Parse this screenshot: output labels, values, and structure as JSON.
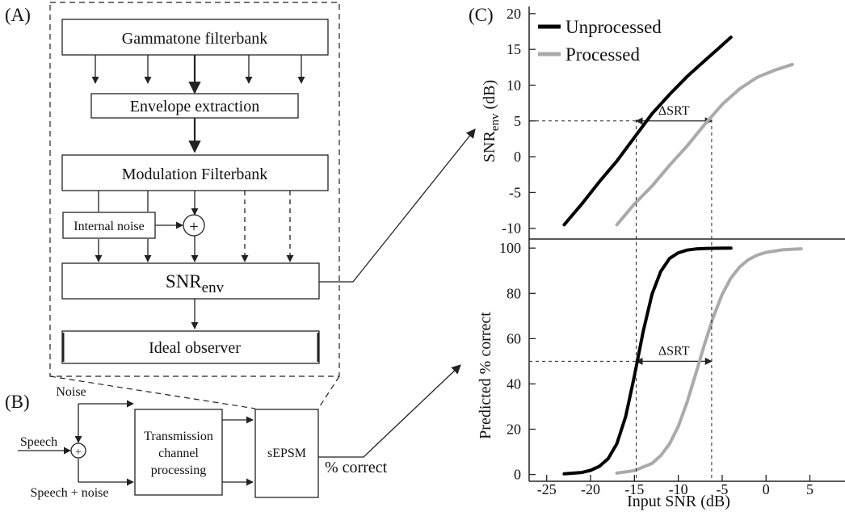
{
  "panel_labels": {
    "a": "(A)",
    "b": "(B)",
    "c": "(C)"
  },
  "panel_a": {
    "gammatone": "Gammatone filterbank",
    "envelope": "Envelope extraction",
    "modulation": "Modulation Filterbank",
    "internal_noise": "Internal noise",
    "plus": "+",
    "snr_base": "SNR",
    "snr_sub": "env",
    "ideal_observer": "Ideal observer"
  },
  "panel_b": {
    "noise": "Noise",
    "speech": "Speech",
    "plus": "+",
    "speech_noise": "Speech + noise",
    "transmission_line1": "Transmission",
    "transmission_line2": "channel",
    "transmission_line3": "processing",
    "sepsm": "sEPSM",
    "percent_correct": "% correct"
  },
  "panel_c": {
    "legend": [
      {
        "name": "Unprocessed",
        "color": "#000000"
      },
      {
        "name": "Processed",
        "color": "#aaaaaa"
      }
    ],
    "delta_srt": "ΔSRT",
    "top_ylabel_base": "SNR",
    "top_ylabel_sub": "env",
    "top_ylabel_unit": " (dB)",
    "bottom_ylabel": "Predicted % correct",
    "xlabel": "Input SNR (dB)"
  },
  "chart_data": [
    {
      "type": "line",
      "panel": "C-top",
      "ylabel": "SNRenv (dB)",
      "xlim": [
        -27,
        9
      ],
      "ylim": [
        -11.5,
        21
      ],
      "yticks": [
        20,
        15,
        10,
        5,
        0,
        -5,
        -10
      ],
      "series": [
        {
          "name": "Unprocessed",
          "color": "#000000",
          "x": [
            -23,
            -21,
            -19,
            -17,
            -15,
            -13,
            -11,
            -9,
            -7,
            -5,
            -4
          ],
          "y": [
            -9.5,
            -6.6,
            -3.5,
            -0.6,
            2.7,
            6.0,
            8.7,
            11.2,
            13.4,
            15.6,
            16.7
          ]
        },
        {
          "name": "Processed",
          "color": "#aaaaaa",
          "x": [
            -17,
            -15,
            -13,
            -11,
            -9,
            -7,
            -5,
            -3,
            -1,
            1,
            3
          ],
          "y": [
            -9.5,
            -6.6,
            -4.1,
            -1.2,
            1.5,
            4.5,
            7.3,
            9.5,
            11.1,
            12.1,
            12.9
          ]
        }
      ],
      "annotations": [
        {
          "text": "ΔSRT",
          "from_x": -14.8,
          "to_x": -6.2,
          "y": 5
        }
      ]
    },
    {
      "type": "line",
      "panel": "C-bottom",
      "ylabel": "Predicted % correct",
      "xlabel": "Input SNR (dB)",
      "xlim": [
        -27,
        9
      ],
      "ylim": [
        -3,
        104
      ],
      "xticks": [
        -25,
        -20,
        -15,
        -10,
        -5,
        0,
        5
      ],
      "yticks": [
        100,
        80,
        60,
        40,
        20,
        0
      ],
      "series": [
        {
          "name": "Unprocessed",
          "color": "#000000",
          "x": [
            -23,
            -21,
            -20,
            -19,
            -18,
            -17,
            -16,
            -15,
            -14,
            -13,
            -12,
            -11,
            -10,
            -9,
            -8,
            -7,
            -6,
            -4
          ],
          "y": [
            0.3,
            0.9,
            1.8,
            3.6,
            7.0,
            13.6,
            25.6,
            43.5,
            63.2,
            79.6,
            89.7,
            95.4,
            97.9,
            99.1,
            99.6,
            99.8,
            99.9,
            100
          ]
        },
        {
          "name": "Processed",
          "color": "#aaaaaa",
          "x": [
            -17,
            -15,
            -13,
            -12,
            -11,
            -10,
            -9,
            -8,
            -7,
            -6,
            -5,
            -4,
            -3,
            -2,
            -1,
            0,
            2,
            4
          ],
          "y": [
            0.6,
            1.7,
            4.9,
            8.3,
            13.5,
            21.2,
            31.9,
            44.6,
            57.6,
            69.7,
            79.5,
            86.8,
            91.7,
            94.9,
            96.9,
            98.1,
            99.3,
            99.7
          ]
        }
      ],
      "annotations": [
        {
          "text": "ΔSRT",
          "from_x": -14.8,
          "to_x": -6.2,
          "y": 50
        }
      ]
    }
  ]
}
